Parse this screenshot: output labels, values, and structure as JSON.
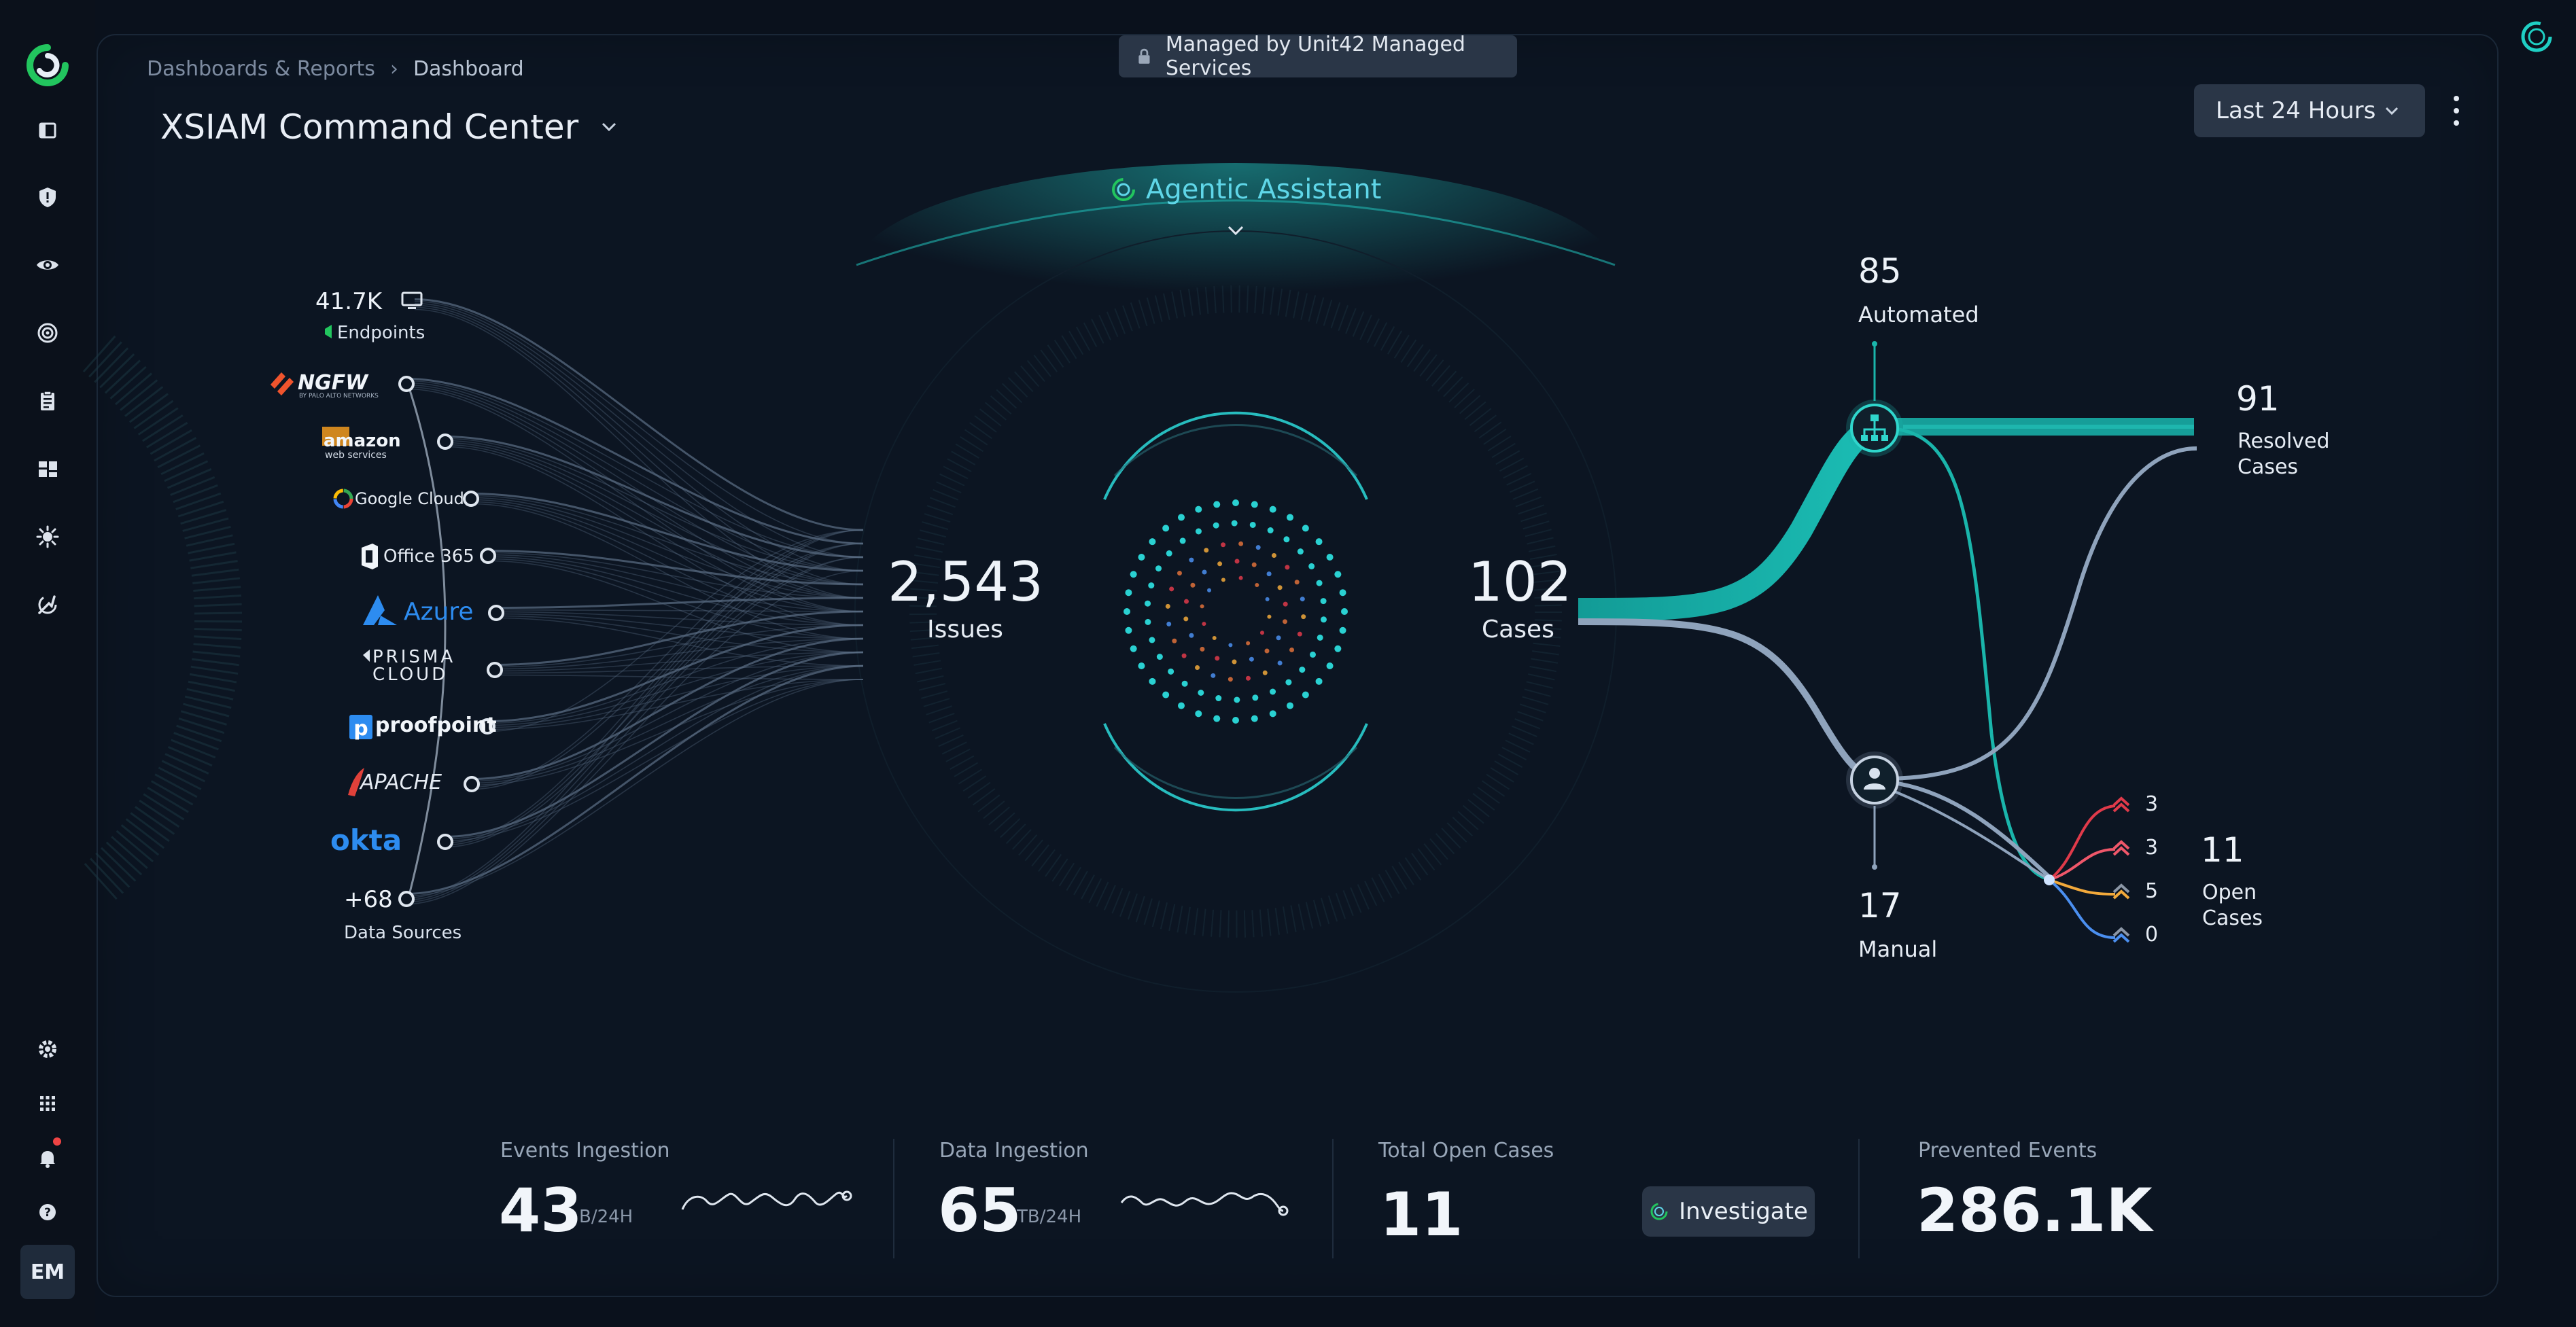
{
  "breadcrumb": {
    "parent": "Dashboards & Reports",
    "current": "Dashboard"
  },
  "title": "XSIAM Command Center",
  "banner": "Managed by Unit42 Managed Services",
  "time_range": "Last 24 Hours",
  "agentic_assistant": "Agentic Assistant",
  "user_initials": "EM",
  "sources": {
    "endpoints": {
      "value": "41.7K",
      "label": "Endpoints"
    },
    "vendors": [
      "NGFW",
      "amazon",
      "Google Cloud",
      "Office 365",
      "Azure",
      "PRISMA CLOUD",
      "proofpoint",
      "APACHE",
      "okta"
    ],
    "more": {
      "value": "+68",
      "label": "Data Sources"
    }
  },
  "issues": {
    "value": "2,543",
    "label": "Issues"
  },
  "cases": {
    "value": "102",
    "label": "Cases"
  },
  "automated": {
    "value": "85",
    "label": "Automated"
  },
  "manual": {
    "value": "17",
    "label": "Manual"
  },
  "resolved": {
    "value": "91",
    "label1": "Resolved",
    "label2": "Cases"
  },
  "open": {
    "value": "11",
    "label1": "Open",
    "label2": "Cases"
  },
  "severity": [
    {
      "count": "3",
      "color": "#e03a4a"
    },
    {
      "count": "3",
      "color": "#f0576a"
    },
    {
      "count": "5",
      "color": "#f2a93b"
    },
    {
      "count": "0",
      "color": "#4b8ff0"
    }
  ],
  "metrics": {
    "events": {
      "title": "Events Ingestion",
      "value": "43",
      "unit": "B/24H"
    },
    "data": {
      "title": "Data Ingestion",
      "value": "65",
      "unit": "TB/24H"
    },
    "open_cases": {
      "title": "Total Open Cases",
      "value": "11",
      "action": "Investigate"
    },
    "prevented": {
      "title": "Prevented Events",
      "value": "286.1K"
    }
  },
  "colors": {
    "accent": "#14b8b0",
    "flow": "#8fa3bc",
    "cyan": "#2ee6e6"
  }
}
